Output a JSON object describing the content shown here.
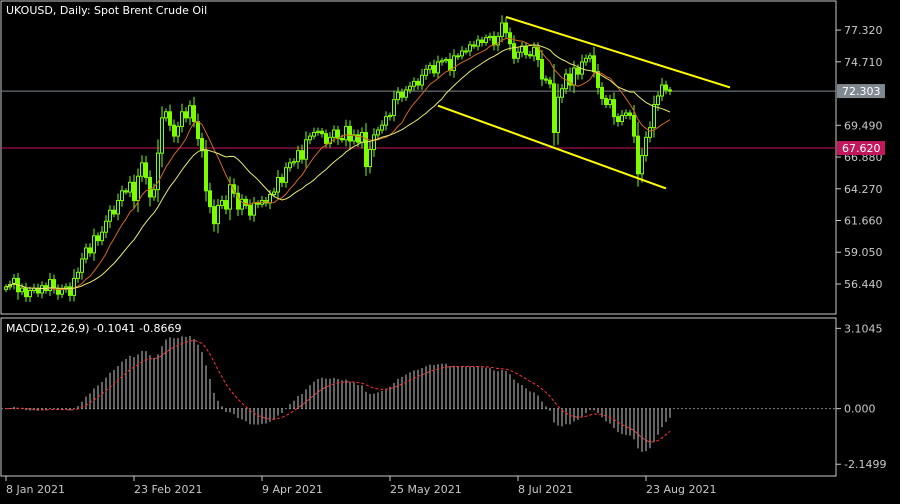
{
  "chart_data": [
    {
      "type": "candlestick",
      "title": "UKOUSD, Daily:  Spot Brent Crude Oil",
      "ylim": [
        54.3,
        79.3
      ],
      "y_ticks": [
        "77.320",
        "74.710",
        "69.490",
        "66.880",
        "64.270",
        "61.660",
        "59.050",
        "56.440"
      ],
      "price_markers": [
        {
          "label": "72.303",
          "value": 72.303,
          "color": "#808890"
        },
        {
          "label": "67.620",
          "value": 67.62,
          "color": "#c2185b"
        }
      ],
      "x_ticks": [
        "8 Jan 2021",
        "23 Feb 2021",
        "9 Apr 2021",
        "25 May 2021",
        "8 Jul 2021",
        "23 Aug 2021"
      ],
      "x_tick_bar_index": [
        0,
        32,
        64,
        96,
        128,
        160
      ],
      "bar_count": 167,
      "moving_averages": [
        {
          "name": "fast",
          "color": "#d2691e",
          "period": 10
        },
        {
          "name": "slow",
          "color": "#e8e870",
          "period": 20
        }
      ],
      "trend_channel": {
        "color": "#ffff00",
        "upper": {
          "from": {
            "bar": 125,
            "value": 78.4
          },
          "to": {
            "bar": 181,
            "value": 72.6
          }
        },
        "lower": {
          "from": {
            "bar": 108,
            "value": 71.1
          },
          "to": {
            "bar": 165,
            "value": 64.3
          }
        }
      },
      "colors": {
        "bull": "#7cfc00",
        "bear": "#7cfc00",
        "wick": "#7cfc00"
      },
      "closes": [
        56.2,
        56.4,
        56.9,
        55.8,
        56.1,
        55.4,
        55.9,
        56.1,
        55.7,
        56.3,
        55.9,
        56.8,
        56.1,
        55.6,
        56.0,
        56.2,
        55.5,
        56.9,
        57.4,
        58.5,
        59.4,
        59.0,
        60.4,
        60.0,
        60.7,
        61.6,
        62.5,
        62.2,
        63.3,
        64.1,
        64.0,
        64.8,
        63.3,
        65.3,
        66.4,
        65.2,
        63.6,
        64.2,
        67.2,
        70.1,
        70.6,
        69.5,
        68.6,
        69.4,
        70.6,
        70.1,
        71.1,
        69.8,
        68.4,
        67.4,
        64.1,
        62.8,
        61.4,
        62.9,
        63.3,
        62.6,
        64.6,
        63.9,
        62.6,
        63.4,
        62.9,
        62.1,
        63.1,
        63.0,
        63.3,
        63.1,
        63.8,
        64.0,
        65.2,
        64.8,
        66.0,
        66.4,
        66.5,
        67.4,
        66.7,
        68.3,
        68.6,
        68.9,
        69.0,
        68.8,
        68.0,
        68.5,
        69.1,
        68.4,
        68.3,
        69.4,
        68.2,
        68.7,
        68.1,
        68.9,
        66.1,
        67.5,
        68.7,
        69.1,
        69.5,
        70.2,
        70.3,
        71.6,
        72.2,
        71.8,
        72.4,
        72.7,
        73.1,
        72.8,
        73.6,
        74.1,
        74.4,
        73.8,
        74.7,
        74.8,
        74.9,
        74.0,
        75.2,
        75.2,
        75.6,
        75.6,
        76.1,
        76.0,
        76.5,
        76.3,
        76.7,
        76.8,
        76.1,
        76.8,
        77.9,
        77.1,
        76.2,
        75.0,
        75.5,
        76.0,
        75.3,
        75.2,
        75.9,
        74.9,
        73.3,
        73.2,
        72.9,
        68.9,
        71.8,
        72.5,
        73.7,
        72.8,
        74.2,
        73.7,
        74.7,
        75.0,
        75.2,
        73.9,
        72.6,
        71.7,
        71.2,
        71.6,
        70.2,
        69.8,
        70.3,
        70.5,
        70.3,
        68.6,
        65.5,
        67.0,
        68.5,
        69.3,
        71.2,
        71.9,
        72.8,
        72.4,
        72.3
      ]
    },
    {
      "type": "macd",
      "title": "MACD(12,26,9) -0.1041 -0.8669",
      "params": [
        12,
        26,
        9
      ],
      "value": -0.1041,
      "signal_value": -0.8669,
      "ylim": [
        -2.45,
        3.35
      ],
      "y_ticks": [
        "3.1045",
        "0.000",
        "-2.1499"
      ],
      "colors": {
        "histogram": "#c8c8c8",
        "signal": "#ff3030",
        "zero_line": "#808080"
      }
    }
  ]
}
